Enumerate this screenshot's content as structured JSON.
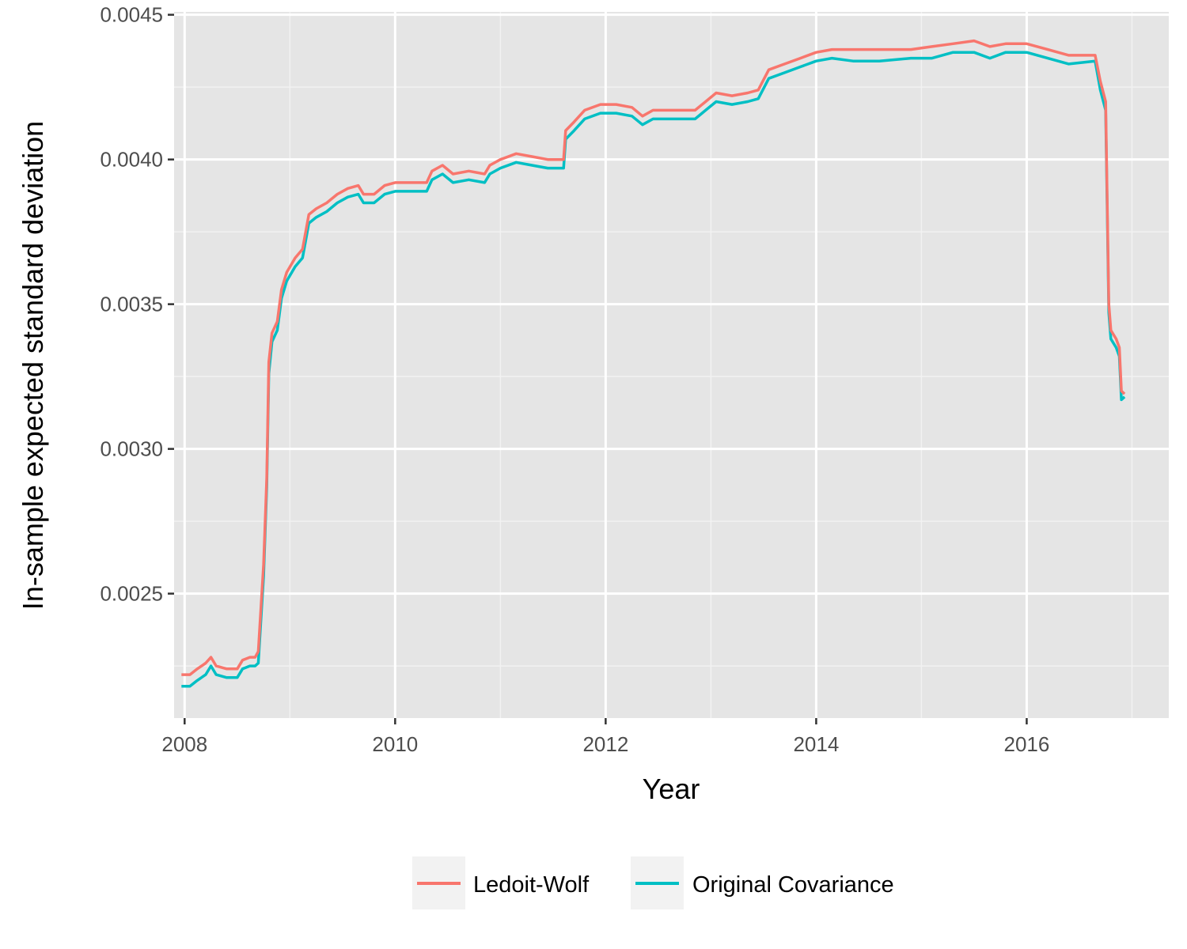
{
  "chart_data": {
    "type": "line",
    "title": "",
    "xlabel": "Year",
    "ylabel": "In-sample expected standard deviation",
    "xlim": [
      2007.9,
      2017.35
    ],
    "ylim": [
      0.00207,
      0.00451
    ],
    "x_ticks": [
      2008,
      2010,
      2012,
      2014,
      2016
    ],
    "x_tick_labels": [
      "2008",
      "2010",
      "2012",
      "2014",
      "2016"
    ],
    "y_ticks": [
      0.0025,
      0.003,
      0.0035,
      0.004,
      0.0045
    ],
    "y_tick_labels": [
      "0.0025",
      "0.0030",
      "0.0035",
      "0.0040",
      "0.0045"
    ],
    "grid": true,
    "legend_position": "bottom",
    "series": [
      {
        "name": "Ledoit-Wolf",
        "color": "#f8766d",
        "points": [
          [
            2007.97,
            0.00222
          ],
          [
            2008.05,
            0.00222
          ],
          [
            2008.12,
            0.00224
          ],
          [
            2008.2,
            0.00226
          ],
          [
            2008.25,
            0.00228
          ],
          [
            2008.3,
            0.00225
          ],
          [
            2008.4,
            0.00224
          ],
          [
            2008.5,
            0.00224
          ],
          [
            2008.55,
            0.00227
          ],
          [
            2008.62,
            0.00228
          ],
          [
            2008.67,
            0.00228
          ],
          [
            2008.7,
            0.0023
          ],
          [
            2008.73,
            0.00248
          ],
          [
            2008.75,
            0.0026
          ],
          [
            2008.78,
            0.0029
          ],
          [
            2008.8,
            0.0033
          ],
          [
            2008.83,
            0.0034
          ],
          [
            2008.88,
            0.00344
          ],
          [
            2008.92,
            0.00355
          ],
          [
            2008.97,
            0.00361
          ],
          [
            2009.05,
            0.00366
          ],
          [
            2009.12,
            0.00369
          ],
          [
            2009.18,
            0.00381
          ],
          [
            2009.25,
            0.00383
          ],
          [
            2009.35,
            0.00385
          ],
          [
            2009.45,
            0.00388
          ],
          [
            2009.55,
            0.0039
          ],
          [
            2009.65,
            0.00391
          ],
          [
            2009.7,
            0.00388
          ],
          [
            2009.8,
            0.00388
          ],
          [
            2009.9,
            0.00391
          ],
          [
            2010.0,
            0.00392
          ],
          [
            2010.15,
            0.00392
          ],
          [
            2010.3,
            0.00392
          ],
          [
            2010.35,
            0.00396
          ],
          [
            2010.45,
            0.00398
          ],
          [
            2010.55,
            0.00395
          ],
          [
            2010.7,
            0.00396
          ],
          [
            2010.85,
            0.00395
          ],
          [
            2010.9,
            0.00398
          ],
          [
            2011.0,
            0.004
          ],
          [
            2011.15,
            0.00402
          ],
          [
            2011.3,
            0.00401
          ],
          [
            2011.45,
            0.004
          ],
          [
            2011.6,
            0.004
          ],
          [
            2011.62,
            0.0041
          ],
          [
            2011.7,
            0.00413
          ],
          [
            2011.8,
            0.00417
          ],
          [
            2011.95,
            0.00419
          ],
          [
            2012.1,
            0.00419
          ],
          [
            2012.25,
            0.00418
          ],
          [
            2012.35,
            0.00415
          ],
          [
            2012.45,
            0.00417
          ],
          [
            2012.6,
            0.00417
          ],
          [
            2012.85,
            0.00417
          ],
          [
            2012.95,
            0.0042
          ],
          [
            2013.05,
            0.00423
          ],
          [
            2013.2,
            0.00422
          ],
          [
            2013.35,
            0.00423
          ],
          [
            2013.45,
            0.00424
          ],
          [
            2013.55,
            0.00431
          ],
          [
            2013.7,
            0.00433
          ],
          [
            2013.85,
            0.00435
          ],
          [
            2014.0,
            0.00437
          ],
          [
            2014.15,
            0.00438
          ],
          [
            2014.35,
            0.00438
          ],
          [
            2014.6,
            0.00438
          ],
          [
            2014.9,
            0.00438
          ],
          [
            2015.1,
            0.00439
          ],
          [
            2015.3,
            0.0044
          ],
          [
            2015.5,
            0.00441
          ],
          [
            2015.65,
            0.00439
          ],
          [
            2015.8,
            0.0044
          ],
          [
            2016.0,
            0.0044
          ],
          [
            2016.2,
            0.00438
          ],
          [
            2016.4,
            0.00436
          ],
          [
            2016.65,
            0.00436
          ],
          [
            2016.7,
            0.00427
          ],
          [
            2016.75,
            0.0042
          ],
          [
            2016.78,
            0.0035
          ],
          [
            2016.8,
            0.00341
          ],
          [
            2016.85,
            0.00338
          ],
          [
            2016.88,
            0.00335
          ],
          [
            2016.9,
            0.0032
          ],
          [
            2016.93,
            0.00319
          ]
        ]
      },
      {
        "name": "Original Covariance",
        "color": "#00bfc4",
        "points": [
          [
            2007.97,
            0.00218
          ],
          [
            2008.05,
            0.00218
          ],
          [
            2008.12,
            0.0022
          ],
          [
            2008.2,
            0.00222
          ],
          [
            2008.25,
            0.00225
          ],
          [
            2008.3,
            0.00222
          ],
          [
            2008.4,
            0.00221
          ],
          [
            2008.5,
            0.00221
          ],
          [
            2008.55,
            0.00224
          ],
          [
            2008.62,
            0.00225
          ],
          [
            2008.67,
            0.00225
          ],
          [
            2008.7,
            0.00226
          ],
          [
            2008.73,
            0.00244
          ],
          [
            2008.75,
            0.00256
          ],
          [
            2008.78,
            0.00287
          ],
          [
            2008.8,
            0.00326
          ],
          [
            2008.83,
            0.00337
          ],
          [
            2008.88,
            0.00341
          ],
          [
            2008.92,
            0.00352
          ],
          [
            2008.97,
            0.00358
          ],
          [
            2009.05,
            0.00363
          ],
          [
            2009.12,
            0.00366
          ],
          [
            2009.18,
            0.00378
          ],
          [
            2009.25,
            0.0038
          ],
          [
            2009.35,
            0.00382
          ],
          [
            2009.45,
            0.00385
          ],
          [
            2009.55,
            0.00387
          ],
          [
            2009.65,
            0.00388
          ],
          [
            2009.7,
            0.00385
          ],
          [
            2009.8,
            0.00385
          ],
          [
            2009.9,
            0.00388
          ],
          [
            2010.0,
            0.00389
          ],
          [
            2010.15,
            0.00389
          ],
          [
            2010.3,
            0.00389
          ],
          [
            2010.35,
            0.00393
          ],
          [
            2010.45,
            0.00395
          ],
          [
            2010.55,
            0.00392
          ],
          [
            2010.7,
            0.00393
          ],
          [
            2010.85,
            0.00392
          ],
          [
            2010.9,
            0.00395
          ],
          [
            2011.0,
            0.00397
          ],
          [
            2011.15,
            0.00399
          ],
          [
            2011.3,
            0.00398
          ],
          [
            2011.45,
            0.00397
          ],
          [
            2011.6,
            0.00397
          ],
          [
            2011.62,
            0.00407
          ],
          [
            2011.7,
            0.0041
          ],
          [
            2011.8,
            0.00414
          ],
          [
            2011.95,
            0.00416
          ],
          [
            2012.1,
            0.00416
          ],
          [
            2012.25,
            0.00415
          ],
          [
            2012.35,
            0.00412
          ],
          [
            2012.45,
            0.00414
          ],
          [
            2012.6,
            0.00414
          ],
          [
            2012.85,
            0.00414
          ],
          [
            2012.95,
            0.00417
          ],
          [
            2013.05,
            0.0042
          ],
          [
            2013.2,
            0.00419
          ],
          [
            2013.35,
            0.0042
          ],
          [
            2013.45,
            0.00421
          ],
          [
            2013.55,
            0.00428
          ],
          [
            2013.7,
            0.0043
          ],
          [
            2013.85,
            0.00432
          ],
          [
            2014.0,
            0.00434
          ],
          [
            2014.15,
            0.00435
          ],
          [
            2014.35,
            0.00434
          ],
          [
            2014.6,
            0.00434
          ],
          [
            2014.9,
            0.00435
          ],
          [
            2015.1,
            0.00435
          ],
          [
            2015.3,
            0.00437
          ],
          [
            2015.5,
            0.00437
          ],
          [
            2015.65,
            0.00435
          ],
          [
            2015.8,
            0.00437
          ],
          [
            2016.0,
            0.00437
          ],
          [
            2016.2,
            0.00435
          ],
          [
            2016.4,
            0.00433
          ],
          [
            2016.65,
            0.00434
          ],
          [
            2016.7,
            0.00424
          ],
          [
            2016.75,
            0.00417
          ],
          [
            2016.78,
            0.00347
          ],
          [
            2016.8,
            0.00338
          ],
          [
            2016.85,
            0.00335
          ],
          [
            2016.88,
            0.00332
          ],
          [
            2016.9,
            0.00317
          ],
          [
            2016.93,
            0.00318
          ]
        ]
      }
    ]
  }
}
